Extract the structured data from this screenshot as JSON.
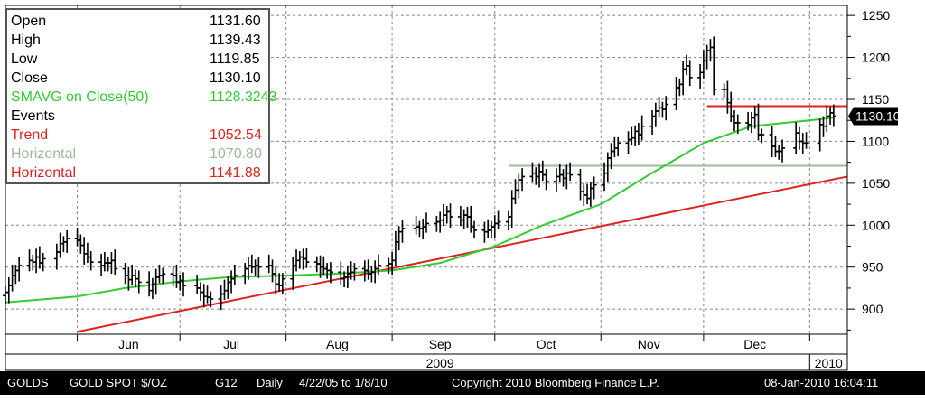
{
  "info_box": {
    "rows": [
      {
        "label": "Open",
        "value": "1131.60",
        "color": "#000000"
      },
      {
        "label": "High",
        "value": "1139.43",
        "color": "#000000"
      },
      {
        "label": "Low",
        "value": "1119.85",
        "color": "#000000"
      },
      {
        "label": "Close",
        "value": "1130.10",
        "color": "#000000"
      },
      {
        "label": "SMAVG on Close(50)",
        "value": "1128.3243",
        "color": "#33cc33"
      },
      {
        "label": "Events",
        "value": "",
        "color": "#000000"
      },
      {
        "label": "Trend",
        "value": "1052.54",
        "color": "#dd2222"
      },
      {
        "label": "Horizontal",
        "value": "1070.80",
        "color": "#99bb99"
      },
      {
        "label": "Horizontal",
        "value": "1141.88",
        "color": "#dd2222"
      }
    ]
  },
  "status_bar": {
    "ticker": "GOLDS",
    "security": "GOLD SPOT $/OZ",
    "page": "G12",
    "period": "Daily",
    "range": "4/22/05 to 1/8/10",
    "copyright": "Copyright 2010 Bloomberg Finance L.P.",
    "timestamp": "08-Jan-2010 16:04:11"
  },
  "colors": {
    "bars": "#000000",
    "moving_average": "#33cc33",
    "trend_line": "#dd2222",
    "horizontal_low": "#99bb99",
    "horizontal_high": "#dd2222",
    "grid": "#888888"
  },
  "chart_data": {
    "type": "ohlc",
    "y_ticks": [
      900,
      950,
      1000,
      1050,
      1100,
      1150,
      1200,
      1250
    ],
    "ylim": [
      870,
      1262
    ],
    "y_axis_position": "right",
    "grid": true,
    "x_month_labels": [
      "Jun",
      "Jul",
      "Aug",
      "Sep",
      "Oct",
      "Nov",
      "Dec"
    ],
    "x_year_labels": [
      "2009",
      "2010"
    ],
    "xlim": [
      "2009-05-11",
      "2010-01-12"
    ],
    "last_price_label": "1130.10",
    "closes": [
      [
        "2009-05-11",
        920
      ],
      [
        "2009-05-12",
        928
      ],
      [
        "2009-05-13",
        940
      ],
      [
        "2009-05-14",
        946
      ],
      [
        "2009-05-15",
        952
      ],
      [
        "2009-05-18",
        958
      ],
      [
        "2009-05-19",
        956
      ],
      [
        "2009-05-20",
        962
      ],
      [
        "2009-05-21",
        955
      ],
      [
        "2009-05-22",
        960
      ],
      [
        "2009-05-26",
        968
      ],
      [
        "2009-05-27",
        978
      ],
      [
        "2009-05-28",
        980
      ],
      [
        "2009-05-29",
        984
      ],
      [
        "2009-06-01",
        982
      ],
      [
        "2009-06-02",
        976
      ],
      [
        "2009-06-03",
        966
      ],
      [
        "2009-06-04",
        962
      ],
      [
        "2009-06-05",
        956
      ],
      [
        "2009-06-08",
        952
      ],
      [
        "2009-06-09",
        955
      ],
      [
        "2009-06-10",
        955
      ],
      [
        "2009-06-11",
        958
      ],
      [
        "2009-06-12",
        948
      ],
      [
        "2009-06-15",
        940
      ],
      [
        "2009-06-16",
        935
      ],
      [
        "2009-06-17",
        940
      ],
      [
        "2009-06-18",
        936
      ],
      [
        "2009-06-19",
        932
      ],
      [
        "2009-06-22",
        922
      ],
      [
        "2009-06-23",
        930
      ],
      [
        "2009-06-24",
        938
      ],
      [
        "2009-06-25",
        940
      ],
      [
        "2009-06-26",
        942
      ],
      [
        "2009-06-29",
        940
      ],
      [
        "2009-06-30",
        932
      ],
      [
        "2009-07-01",
        934
      ],
      [
        "2009-07-02",
        928
      ],
      [
        "2009-07-06",
        925
      ],
      [
        "2009-07-07",
        920
      ],
      [
        "2009-07-08",
        915
      ],
      [
        "2009-07-09",
        914
      ],
      [
        "2009-07-10",
        912
      ],
      [
        "2009-07-13",
        918
      ],
      [
        "2009-07-14",
        922
      ],
      [
        "2009-07-15",
        932
      ],
      [
        "2009-07-16",
        936
      ],
      [
        "2009-07-17",
        940
      ],
      [
        "2009-07-20",
        948
      ],
      [
        "2009-07-21",
        952
      ],
      [
        "2009-07-22",
        950
      ],
      [
        "2009-07-23",
        952
      ],
      [
        "2009-07-24",
        950
      ],
      [
        "2009-07-27",
        952
      ],
      [
        "2009-07-28",
        942
      ],
      [
        "2009-07-29",
        930
      ],
      [
        "2009-07-30",
        928
      ],
      [
        "2009-07-31",
        936
      ],
      [
        "2009-08-03",
        952
      ],
      [
        "2009-08-04",
        958
      ],
      [
        "2009-08-05",
        962
      ],
      [
        "2009-08-06",
        960
      ],
      [
        "2009-08-07",
        956
      ],
      [
        "2009-08-10",
        954
      ],
      [
        "2009-08-11",
        950
      ],
      [
        "2009-08-12",
        948
      ],
      [
        "2009-08-13",
        946
      ],
      [
        "2009-08-14",
        944
      ],
      [
        "2009-08-17",
        936
      ],
      [
        "2009-08-18",
        938
      ],
      [
        "2009-08-19",
        942
      ],
      [
        "2009-08-20",
        944
      ],
      [
        "2009-08-21",
        948
      ],
      [
        "2009-08-24",
        946
      ],
      [
        "2009-08-25",
        942
      ],
      [
        "2009-08-26",
        944
      ],
      [
        "2009-08-27",
        948
      ],
      [
        "2009-08-28",
        952
      ],
      [
        "2009-08-31",
        954
      ],
      [
        "2009-09-01",
        958
      ],
      [
        "2009-09-02",
        980
      ],
      [
        "2009-09-03",
        992
      ],
      [
        "2009-09-04",
        996
      ],
      [
        "2009-09-08",
        998
      ],
      [
        "2009-09-09",
        996
      ],
      [
        "2009-09-10",
        998
      ],
      [
        "2009-09-11",
        1002
      ],
      [
        "2009-09-14",
        1004
      ],
      [
        "2009-09-15",
        1006
      ],
      [
        "2009-09-16",
        1012
      ],
      [
        "2009-09-17",
        1016
      ],
      [
        "2009-09-18",
        1010
      ],
      [
        "2009-09-21",
        1006
      ],
      [
        "2009-09-22",
        1012
      ],
      [
        "2009-09-23",
        1010
      ],
      [
        "2009-09-24",
        998
      ],
      [
        "2009-09-25",
        994
      ],
      [
        "2009-09-28",
        992
      ],
      [
        "2009-09-29",
        994
      ],
      [
        "2009-09-30",
        998
      ],
      [
        "2009-10-01",
        1002
      ],
      [
        "2009-10-02",
        1004
      ],
      [
        "2009-10-05",
        1010
      ],
      [
        "2009-10-06",
        1032
      ],
      [
        "2009-10-07",
        1042
      ],
      [
        "2009-10-08",
        1054
      ],
      [
        "2009-10-09",
        1058
      ],
      [
        "2009-10-12",
        1062
      ],
      [
        "2009-10-13",
        1058
      ],
      [
        "2009-10-14",
        1064
      ],
      [
        "2009-10-15",
        1060
      ],
      [
        "2009-10-16",
        1052
      ],
      [
        "2009-10-19",
        1058
      ],
      [
        "2009-10-20",
        1060
      ],
      [
        "2009-10-21",
        1056
      ],
      [
        "2009-10-22",
        1062
      ],
      [
        "2009-10-23",
        1060
      ],
      [
        "2009-10-26",
        1040
      ],
      [
        "2009-10-27",
        1036
      ],
      [
        "2009-10-28",
        1032
      ],
      [
        "2009-10-29",
        1044
      ],
      [
        "2009-10-30",
        1048
      ],
      [
        "2009-11-02",
        1062
      ],
      [
        "2009-11-03",
        1080
      ],
      [
        "2009-11-04",
        1088
      ],
      [
        "2009-11-05",
        1092
      ],
      [
        "2009-11-06",
        1098
      ],
      [
        "2009-11-09",
        1102
      ],
      [
        "2009-11-10",
        1104
      ],
      [
        "2009-11-11",
        1112
      ],
      [
        "2009-11-12",
        1108
      ],
      [
        "2009-11-13",
        1118
      ],
      [
        "2009-11-16",
        1130
      ],
      [
        "2009-11-17",
        1136
      ],
      [
        "2009-11-18",
        1140
      ],
      [
        "2009-11-19",
        1138
      ],
      [
        "2009-11-20",
        1144
      ],
      [
        "2009-11-23",
        1164
      ],
      [
        "2009-11-24",
        1168
      ],
      [
        "2009-11-25",
        1186
      ],
      [
        "2009-11-26",
        1190
      ],
      [
        "2009-11-27",
        1176
      ],
      [
        "2009-11-30",
        1182
      ],
      [
        "2009-12-01",
        1196
      ],
      [
        "2009-12-02",
        1208
      ],
      [
        "2009-12-03",
        1212
      ],
      [
        "2009-12-04",
        1162
      ],
      [
        "2009-12-07",
        1162
      ],
      [
        "2009-12-08",
        1146
      ],
      [
        "2009-12-09",
        1130
      ],
      [
        "2009-12-10",
        1122
      ],
      [
        "2009-12-11",
        1122
      ],
      [
        "2009-12-14",
        1120
      ],
      [
        "2009-12-15",
        1128
      ],
      [
        "2009-12-16",
        1132
      ],
      [
        "2009-12-17",
        1108
      ],
      [
        "2009-12-18",
        1108
      ],
      [
        "2009-12-21",
        1094
      ],
      [
        "2009-12-22",
        1088
      ],
      [
        "2009-12-23",
        1088
      ],
      [
        "2009-12-24",
        1092
      ],
      [
        "2009-12-28",
        1110
      ],
      [
        "2009-12-29",
        1100
      ],
      [
        "2009-12-30",
        1098
      ],
      [
        "2009-12-31",
        1098
      ],
      [
        "2010-01-04",
        1120
      ],
      [
        "2010-01-05",
        1118
      ],
      [
        "2010-01-06",
        1130
      ],
      [
        "2010-01-07",
        1134
      ],
      [
        "2010-01-08",
        1130.1
      ]
    ],
    "sma50": [
      [
        "2009-05-11",
        908
      ],
      [
        "2009-06-01",
        915
      ],
      [
        "2009-06-15",
        925
      ],
      [
        "2009-07-01",
        933
      ],
      [
        "2009-07-15",
        938
      ],
      [
        "2009-08-01",
        940
      ],
      [
        "2009-08-15",
        942
      ],
      [
        "2009-09-01",
        946
      ],
      [
        "2009-09-15",
        955
      ],
      [
        "2009-10-01",
        975
      ],
      [
        "2009-10-15",
        1000
      ],
      [
        "2009-11-01",
        1025
      ],
      [
        "2009-11-15",
        1060
      ],
      [
        "2009-12-01",
        1098
      ],
      [
        "2009-12-15",
        1118
      ],
      [
        "2010-01-01",
        1125
      ],
      [
        "2010-01-08",
        1128.32
      ]
    ],
    "trend_line": [
      [
        "2009-06-01",
        873
      ],
      [
        "2010-01-12",
        1058
      ]
    ],
    "horizontal_lines": [
      {
        "value": 1070.8,
        "from": "2009-10-05",
        "to": "2010-01-12"
      },
      {
        "value": 1141.88,
        "from": "2009-12-02",
        "to": "2010-01-12"
      }
    ]
  }
}
